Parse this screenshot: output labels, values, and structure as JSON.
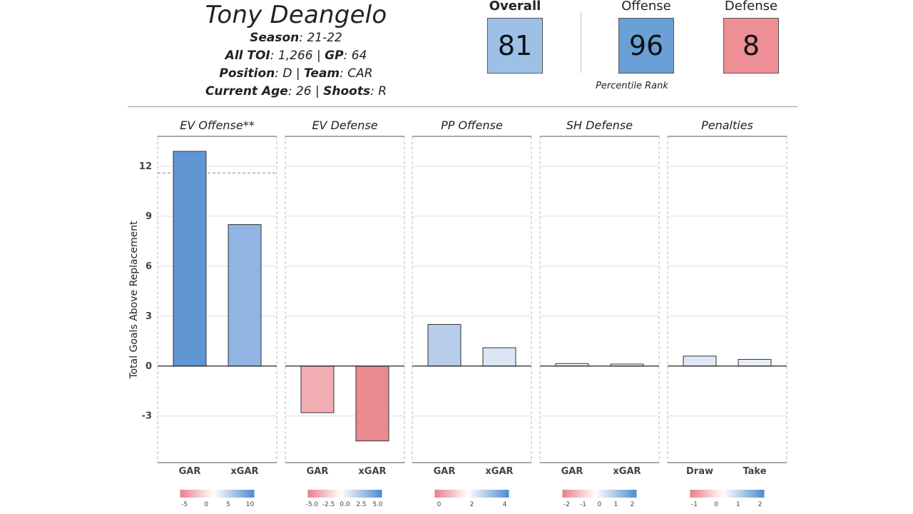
{
  "player": {
    "name": "Tony Deangelo",
    "season_label": "Season",
    "season": "21-22",
    "toi_label": "All TOI",
    "toi": "1,266",
    "gp_label": "GP",
    "gp": "64",
    "position_label": "Position",
    "position": "D",
    "team_label": "Team",
    "team": "CAR",
    "age_label": "Current Age",
    "age": "26",
    "shoots_label": "Shoots",
    "shoots": "R"
  },
  "tiles": {
    "overall": {
      "label": "Overall",
      "value": "81",
      "color": "#9dc0e6"
    },
    "offense": {
      "label": "Offense",
      "value": "96",
      "color": "#6a9fd7"
    },
    "defense": {
      "label": "Defense",
      "value": "8",
      "color": "#ee8f95"
    },
    "caption": "Percentile Rank"
  },
  "chart_data": {
    "type": "bar",
    "ylabel": "Total Goals Above Replacement",
    "ylim": [
      -5.8,
      13.8
    ],
    "yticks": [
      -3,
      0,
      3,
      6,
      9,
      12
    ],
    "reference_line": {
      "panel": "EV Offense**",
      "value": 11.6,
      "style": "dashed"
    },
    "panels": [
      {
        "title": "EV Offense**",
        "categories": [
          "GAR",
          "xGAR"
        ],
        "values": [
          12.9,
          8.5
        ],
        "colors": [
          "#5f96d3",
          "#91b5e2"
        ],
        "legend_ticks": [
          "-5",
          "0",
          "5",
          "10"
        ]
      },
      {
        "title": "EV Defense",
        "categories": [
          "GAR",
          "xGAR"
        ],
        "values": [
          -2.8,
          -4.5
        ],
        "colors": [
          "#f1adb1",
          "#eb8a90"
        ],
        "legend_ticks": [
          "-5.0",
          "-2.5",
          "0.0",
          "2.5",
          "5.0"
        ]
      },
      {
        "title": "PP Offense",
        "categories": [
          "GAR",
          "xGAR"
        ],
        "values": [
          2.5,
          1.1
        ],
        "colors": [
          "#b8cdea",
          "#dae6f5"
        ],
        "legend_ticks": [
          "0",
          "2",
          "4"
        ]
      },
      {
        "title": "SH Defense",
        "categories": [
          "GAR",
          "xGAR"
        ],
        "values": [
          0.15,
          0.12
        ],
        "colors": [
          "#eef2f8",
          "#eef2f8"
        ],
        "legend_ticks": [
          "-2",
          "-1",
          "0",
          "1",
          "2"
        ]
      },
      {
        "title": "Penalties",
        "categories": [
          "Draw",
          "Take"
        ],
        "values": [
          0.6,
          0.4
        ],
        "colors": [
          "#dde7f5",
          "#e8eef8"
        ],
        "legend_ticks": [
          "-1",
          "0",
          "1",
          "2"
        ]
      }
    ]
  }
}
